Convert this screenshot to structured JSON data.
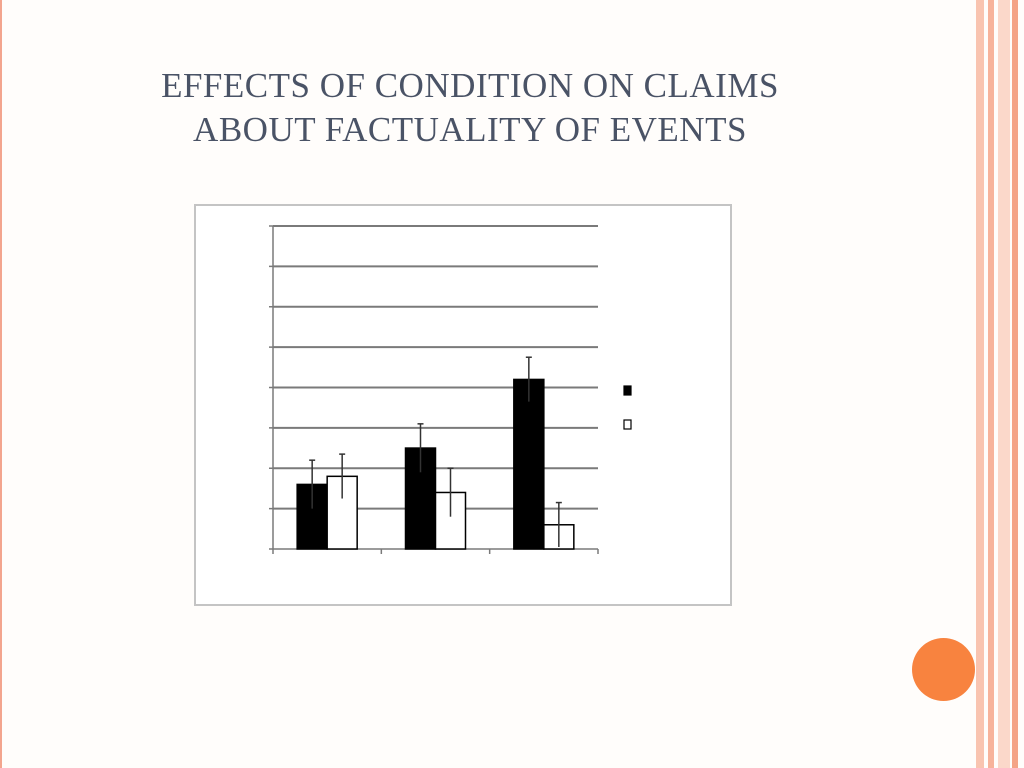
{
  "slide": {
    "title_lines": [
      "EFFECTS OF CONDITION ON CLAIMS",
      "ABOUT FACTUALITY OF EVENTS"
    ],
    "colors": {
      "title": "#4a5366",
      "left_border": "#f3a58e",
      "stripes": [
        "#f9c4b0",
        "#f7b39b",
        "#fbd8ca",
        "#f4a487"
      ],
      "accent_circle": "#f8833f",
      "bar_dark": "#000000",
      "bar_light": "#ffffff",
      "grid": "#7a7a7a",
      "frame_border": "#c4c4c4"
    }
  },
  "chart_data": {
    "type": "bar",
    "title": "",
    "xlabel": "",
    "ylabel": "",
    "categories": [
      "",
      "",
      ""
    ],
    "ylim": [
      0,
      8
    ],
    "grid": true,
    "legend_position": "right",
    "series": [
      {
        "name": "",
        "color": "#000000",
        "values": [
          1.6,
          2.5,
          4.2
        ],
        "errors": [
          0.6,
          0.6,
          0.55
        ]
      },
      {
        "name": "",
        "color": "#ffffff",
        "values": [
          1.8,
          1.4,
          0.6
        ],
        "errors": [
          0.55,
          0.6,
          0.55
        ]
      }
    ]
  }
}
